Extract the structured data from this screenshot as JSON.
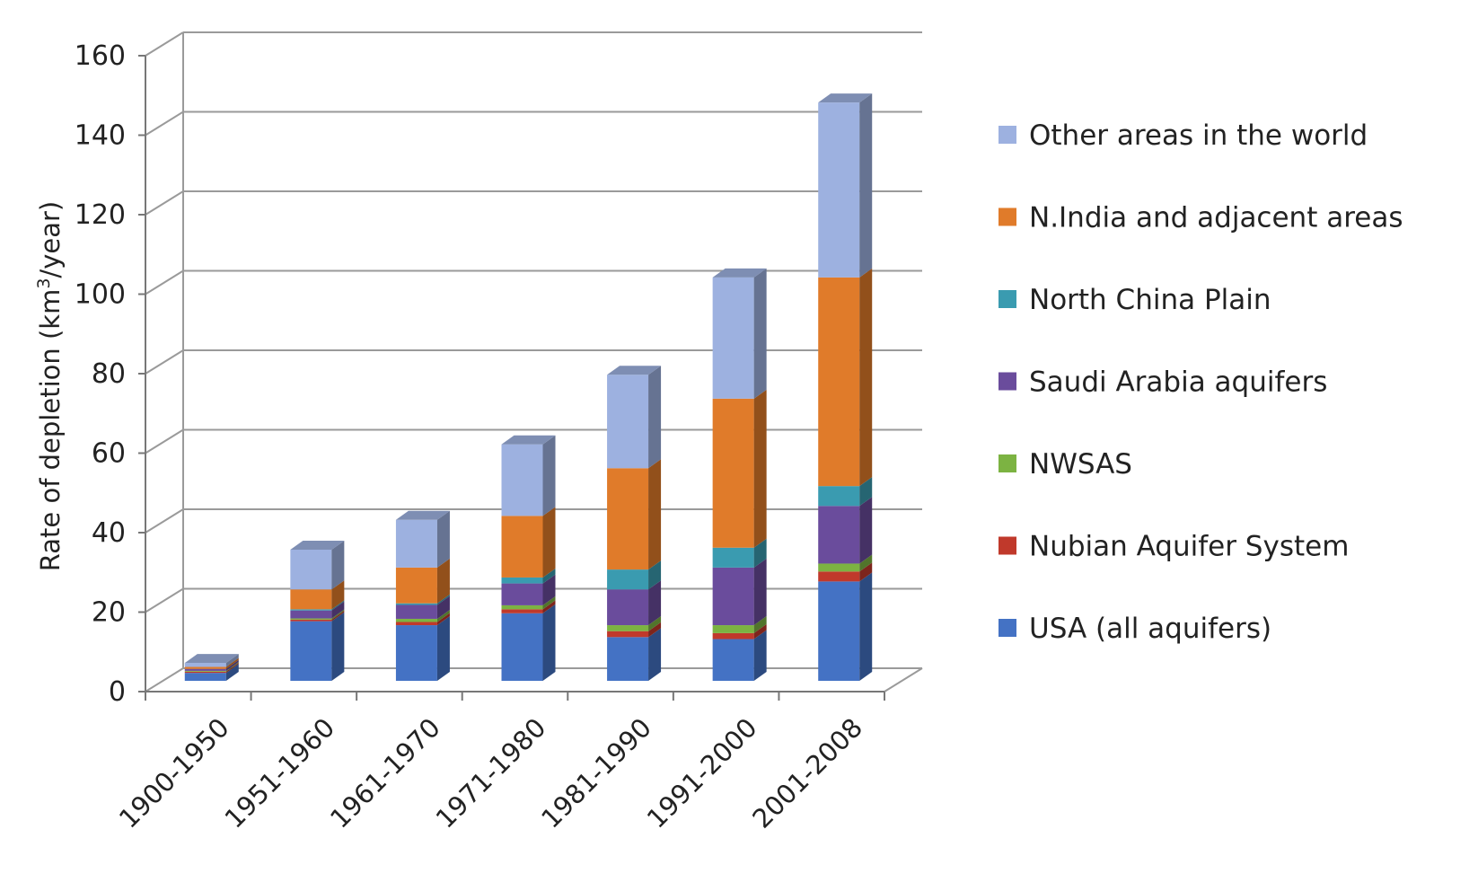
{
  "chart_data": {
    "type": "bar",
    "stacked": true,
    "three_d": true,
    "title": "",
    "xlabel": "",
    "ylabel_main": "Rate of depletion (km",
    "ylabel_sup": "3",
    "ylabel_end": "/year)",
    "ylim": [
      0,
      160
    ],
    "yticks": [
      "0",
      "20",
      "40",
      "60",
      "80",
      "100",
      "120",
      "140",
      "160"
    ],
    "ytick_values": [
      0,
      20,
      40,
      60,
      80,
      100,
      120,
      140,
      160
    ],
    "grid": true,
    "legend_position": "right",
    "categories": [
      "1900-1950",
      "1951-1960",
      "1961-1970",
      "1971-1980",
      "1981-1990",
      "1991-2000",
      "2001-2008"
    ],
    "series": [
      {
        "name": "USA (all aquifers)",
        "color": "#4472C4",
        "values": [
          2,
          15,
          14,
          17,
          11,
          10.5,
          25
        ]
      },
      {
        "name": "Nubian Aquifer System",
        "color": "#C0392B",
        "values": [
          0.3,
          0.4,
          0.8,
          1,
          1.5,
          1.5,
          2.5
        ]
      },
      {
        "name": "NWSAS",
        "color": "#7CB342",
        "values": [
          0.2,
          0.3,
          0.8,
          1,
          1.5,
          2,
          2
        ]
      },
      {
        "name": "Saudi Arabia aquifers",
        "color": "#6A4C9C",
        "values": [
          0.5,
          2,
          3.5,
          5.5,
          9,
          14.5,
          14.5
        ]
      },
      {
        "name": "North China Plain",
        "color": "#3A9BB0",
        "values": [
          0,
          0.3,
          0.4,
          1.5,
          5,
          5,
          5
        ]
      },
      {
        "name": "N.India and adjacent areas",
        "color": "#E07B2A",
        "values": [
          0.5,
          5,
          9,
          15.5,
          25.5,
          37.5,
          52.5
        ]
      },
      {
        "name": "Other areas in the world",
        "color": "#9DB1E0",
        "values": [
          1,
          10,
          12,
          18,
          23.5,
          30.5,
          44
        ]
      }
    ]
  }
}
